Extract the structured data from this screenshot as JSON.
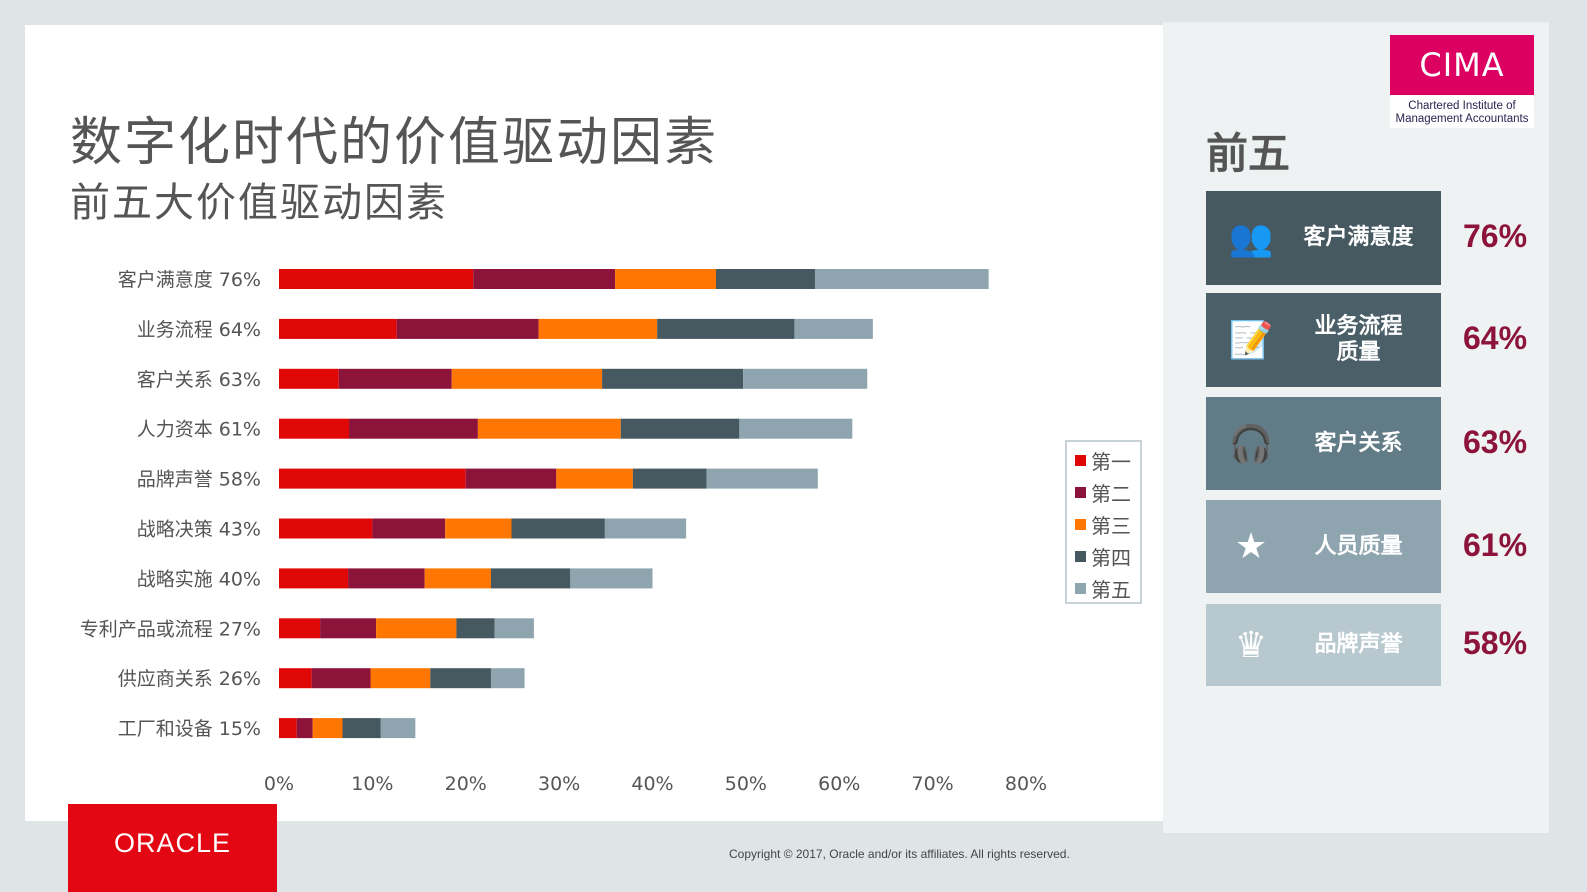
{
  "title": "数字化时代的价值驱动因素",
  "subtitle": "前五大价值驱动因素",
  "chart_data": {
    "type": "bar",
    "orientation": "horizontal",
    "stacked": true,
    "categories": [
      "客户满意度 76%",
      "业务流程 64%",
      "客户关系 63%",
      "人力资本 61%",
      "品牌声誉 58%",
      "战略决策 43%",
      "战略实施 40%",
      "专利产品或流程 27%",
      "供应商关系 26%",
      "工厂和设备 15%"
    ],
    "series": [
      {
        "name": "第一",
        "color": "#DF0806",
        "values": [
          20.8,
          12.6,
          6.4,
          7.5,
          20.0,
          10.0,
          7.4,
          4.4,
          3.5,
          1.9
        ]
      },
      {
        "name": "第二",
        "color": "#8C133A",
        "values": [
          15.2,
          15.2,
          12.1,
          13.8,
          9.7,
          7.8,
          8.2,
          6.0,
          6.3,
          1.7
        ]
      },
      {
        "name": "第三",
        "color": "#FF7600",
        "values": [
          10.8,
          12.7,
          16.1,
          15.3,
          8.2,
          7.1,
          7.1,
          8.6,
          6.4,
          3.2
        ]
      },
      {
        "name": "第四",
        "color": "#465860",
        "values": [
          10.6,
          14.7,
          15.1,
          12.7,
          7.9,
          10.0,
          8.5,
          4.1,
          6.5,
          4.1
        ]
      },
      {
        "name": "第五",
        "color": "#8EA5B0",
        "values": [
          18.6,
          8.4,
          13.3,
          12.1,
          11.9,
          8.7,
          8.8,
          4.2,
          3.6,
          3.7
        ]
      }
    ],
    "xlim": [
      0,
      80
    ],
    "xticks": [
      "0%",
      "10%",
      "20%",
      "30%",
      "40%",
      "50%",
      "60%",
      "70%",
      "80%"
    ],
    "grid": false,
    "legend": "right"
  },
  "panel": {
    "heading": "前五",
    "items": [
      {
        "label": "客户满意度",
        "pct": "76%",
        "icon": "customer-service-desk-icon",
        "bg": "#465860"
      },
      {
        "label": "业务流程质量",
        "pct": "64%",
        "icon": "process-document-icon",
        "bg": "#4b5f68"
      },
      {
        "label": "客户关系",
        "pct": "63%",
        "icon": "headset-person-icon",
        "bg": "#617b87"
      },
      {
        "label": "人员质量",
        "pct": "61%",
        "icon": "team-star-icon",
        "bg": "#8ea5b0"
      },
      {
        "label": "品牌声誉",
        "pct": "58%",
        "icon": "crown-shield-icon",
        "bg": "#b8c8cf"
      }
    ]
  },
  "logo": {
    "name": "CIMA",
    "line1": "Chartered Institute of",
    "line2": "Management Accountants"
  },
  "oracle": "ORACLE",
  "copyright": "Copyright © 2017, Oracle and/or its affiliates. All rights reserved."
}
